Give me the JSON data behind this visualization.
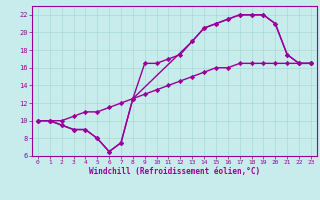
{
  "bg_color": "#c8ecec",
  "grid_color": "#a8d8d8",
  "line_color": "#990099",
  "marker": "D",
  "marker_size": 2.2,
  "line_width": 1.0,
  "xlim": [
    -0.5,
    23.5
  ],
  "ylim": [
    6,
    23
  ],
  "xticks": [
    0,
    1,
    2,
    3,
    4,
    5,
    6,
    7,
    8,
    9,
    10,
    11,
    12,
    13,
    14,
    15,
    16,
    17,
    18,
    19,
    20,
    21,
    22,
    23
  ],
  "yticks": [
    6,
    8,
    10,
    12,
    14,
    16,
    18,
    20,
    22
  ],
  "xlabel": "Windchill (Refroidissement éolien,°C)",
  "series1_x": [
    0,
    1,
    2,
    3,
    4,
    5,
    6,
    7,
    8,
    9,
    10,
    11,
    12,
    13,
    14,
    15,
    16,
    17,
    18,
    19,
    20,
    21,
    22,
    23
  ],
  "series1_y": [
    10,
    10,
    9.5,
    9,
    9,
    8,
    6.5,
    7.5,
    12.5,
    16.5,
    16.5,
    17,
    17.5,
    19,
    20.5,
    21,
    21.5,
    22,
    22,
    22,
    21,
    17.5,
    16.5,
    16.5
  ],
  "series2_x": [
    0,
    1,
    2,
    3,
    4,
    5,
    6,
    7,
    8,
    9,
    10,
    11,
    12,
    13,
    14,
    15,
    16,
    17,
    18,
    19,
    20,
    21,
    22,
    23
  ],
  "series2_y": [
    10,
    10,
    10,
    10.5,
    11,
    11,
    11.5,
    12,
    12.5,
    13,
    13.5,
    14,
    14.5,
    15,
    15.5,
    16,
    16,
    16.5,
    16.5,
    16.5,
    16.5,
    16.5,
    16.5,
    16.5
  ],
  "series3_x": [
    0,
    1,
    2,
    3,
    4,
    5,
    6,
    7,
    8,
    13,
    14,
    15,
    16,
    17,
    18,
    19,
    20,
    21,
    22,
    23
  ],
  "series3_y": [
    10,
    10,
    9.5,
    9,
    9,
    8,
    6.5,
    7.5,
    12.5,
    19,
    20.5,
    21,
    21.5,
    22,
    22,
    22,
    21,
    17.5,
    16.5,
    16.5
  ]
}
